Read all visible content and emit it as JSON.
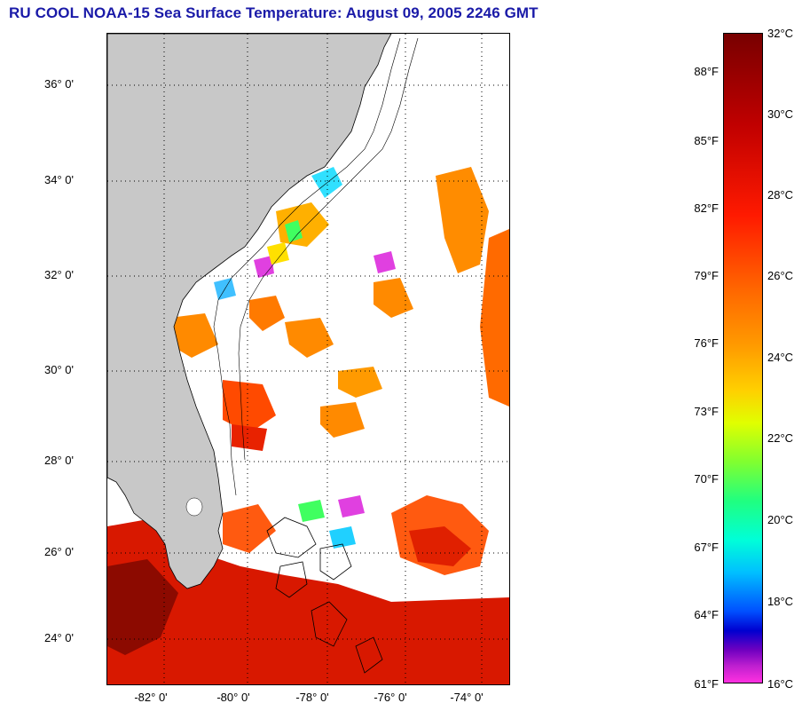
{
  "title": "RU COOL  NOAA-15  Sea Surface Temperature:  August 09, 2005 2246 GMT",
  "latitude_labels": [
    "36° 0'",
    "34° 0'",
    "32° 0'",
    "30° 0'",
    "28° 0'",
    "26° 0'",
    "24° 0'"
  ],
  "longitude_labels": [
    "-82° 0'",
    "-80° 0'",
    "-78° 0'",
    "-76° 0'",
    "-74° 0'"
  ],
  "colorbar": {
    "fahrenheit_labels": [
      "88°F",
      "85°F",
      "82°F",
      "79°F",
      "76°F",
      "73°F",
      "70°F",
      "67°F",
      "64°F",
      "61°F"
    ],
    "celsius_labels": [
      "32°C",
      "30°C",
      "28°C",
      "26°C",
      "24°C",
      "22°C",
      "20°C",
      "18°C",
      "16°C"
    ]
  },
  "colors": {
    "land": "#c8c8c8",
    "title": "#1a1aa8",
    "no_data": "#ffffff"
  }
}
